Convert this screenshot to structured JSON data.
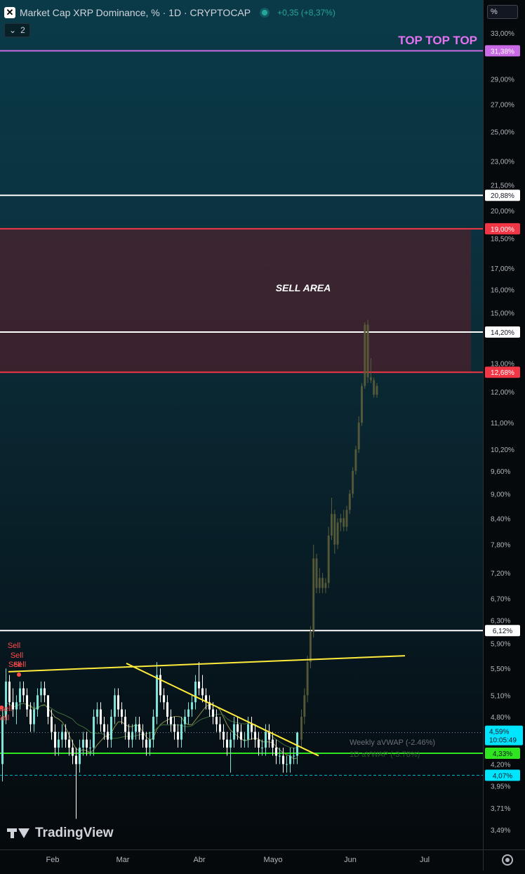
{
  "header": {
    "title": "Market Cap XRP Dominance, % · 1D · CRYPTOCAP",
    "change": "+0,35 (+8,37%)",
    "indicator_count": "2",
    "unit": "%"
  },
  "watermark": "TradingView",
  "axis_ticks": [
    {
      "value": 33.0,
      "label": "33,00%"
    },
    {
      "value": 29.0,
      "label": "29,00%"
    },
    {
      "value": 27.0,
      "label": "27,00%"
    },
    {
      "value": 25.0,
      "label": "25,00%"
    },
    {
      "value": 23.0,
      "label": "23,00%"
    },
    {
      "value": 21.5,
      "label": "21,50%"
    },
    {
      "value": 20.0,
      "label": "20,00%"
    },
    {
      "value": 18.5,
      "label": "18,50%"
    },
    {
      "value": 17.0,
      "label": "17,00%"
    },
    {
      "value": 16.0,
      "label": "16,00%"
    },
    {
      "value": 15.0,
      "label": "15,00%"
    },
    {
      "value": 13.0,
      "label": "13,00%"
    },
    {
      "value": 12.0,
      "label": "12,00%"
    },
    {
      "value": 11.0,
      "label": "11,00%"
    },
    {
      "value": 10.2,
      "label": "10,20%"
    },
    {
      "value": 9.6,
      "label": "9,60%"
    },
    {
      "value": 9.0,
      "label": "9,00%"
    },
    {
      "value": 8.4,
      "label": "8,40%"
    },
    {
      "value": 7.8,
      "label": "7,80%"
    },
    {
      "value": 7.2,
      "label": "7,20%"
    },
    {
      "value": 6.7,
      "label": "6,70%"
    },
    {
      "value": 6.3,
      "label": "6,30%"
    },
    {
      "value": 5.9,
      "label": "5,90%"
    },
    {
      "value": 5.5,
      "label": "5,50%"
    },
    {
      "value": 5.1,
      "label": "5,10%"
    },
    {
      "value": 4.8,
      "label": "4,80%"
    },
    {
      "value": 4.2,
      "label": "4,20%"
    },
    {
      "value": 3.95,
      "label": "3,95%"
    },
    {
      "value": 3.71,
      "label": "3,71%"
    },
    {
      "value": 3.49,
      "label": "3,49%"
    }
  ],
  "time_ticks": [
    "Feb",
    "Mar",
    "Abr",
    "Mayo",
    "Jun",
    "Jul"
  ],
  "levels": [
    {
      "value": 31.38,
      "label": "31,38%",
      "line_color": "#c96ae6",
      "badge_bg": "#c96ae6",
      "badge_fg": "#ffffff",
      "style": "solid"
    },
    {
      "value": 20.88,
      "label": "20,88%",
      "line_color": "#ffffff",
      "badge_bg": "#ffffff",
      "badge_fg": "#131722",
      "style": "solid"
    },
    {
      "value": 19.0,
      "label": "19,00%",
      "line_color": "#f23645",
      "badge_bg": "#f23645",
      "badge_fg": "#ffffff",
      "style": "solid"
    },
    {
      "value": 14.2,
      "label": "14,20%",
      "line_color": "#ffffff",
      "badge_bg": "#ffffff",
      "badge_fg": "#131722",
      "style": "solid"
    },
    {
      "value": 12.68,
      "label": "12,68%",
      "line_color": "#f23645",
      "badge_bg": "#f23645",
      "badge_fg": "#ffffff",
      "style": "solid"
    },
    {
      "value": 6.12,
      "label": "6,12%",
      "line_color": "#ffffff",
      "badge_bg": "#ffffff",
      "badge_fg": "#131722",
      "style": "solid"
    },
    {
      "value": 4.33,
      "label": "4,33%",
      "line_color": "#2ee51f",
      "badge_bg": "#2ee51f",
      "badge_fg": "#131722",
      "style": "solid"
    },
    {
      "value": 4.07,
      "label": "4,07%",
      "line_color": "#00bcd4",
      "badge_bg": "#00e5ff",
      "badge_fg": "#131722",
      "style": "dashed"
    }
  ],
  "current_price": {
    "value": 4.59,
    "label": "4,59%",
    "countdown": "10:05:49",
    "color": "#00e5ff"
  },
  "chart_data": {
    "type": "candlestick",
    "title": "Market Cap XRP Dominance, %",
    "interval": "1D",
    "source": "CRYPTOCAP",
    "y_scale": "log",
    "ylim": [
      3.4,
      34.0
    ],
    "x_categories": [
      "Feb",
      "Mar",
      "Abr",
      "Mayo",
      "Jun",
      "Jul"
    ],
    "grid": false,
    "annotations": {
      "top_label": "TOP TOP TOP",
      "zone_label": "SELL AREA",
      "sell_zone": [
        12.68,
        19.0
      ],
      "sell_signals": [
        "Sell",
        "Sell",
        "Sell",
        "Sell",
        "Sell",
        "Sell"
      ],
      "indicator_labels": [
        "Weekly aVWAP (-2.46%)",
        "1D aVWAP (-3.78%)"
      ]
    },
    "trendlines": [
      {
        "name": "",
        "color": "#ffeb3b",
        "from": [
          "Ene 12",
          5.45
        ],
        "to": [
          "Jun 22",
          5.7
        ]
      },
      {
        "name": "",
        "color": "#ffeb3b",
        "from": [
          "Mar 01",
          5.58
        ],
        "to": [
          "May 18",
          4.3
        ]
      }
    ],
    "history_candles": [
      [
        4.2,
        4.9,
        4.0,
        4.8
      ],
      [
        4.8,
        5.5,
        4.7,
        5.3
      ],
      [
        5.3,
        5.4,
        4.9,
        5.0
      ],
      [
        5.0,
        5.2,
        4.8,
        4.9
      ],
      [
        4.9,
        5.1,
        4.7,
        5.0
      ],
      [
        5.0,
        5.3,
        4.9,
        5.2
      ],
      [
        5.2,
        5.3,
        5.0,
        5.1
      ],
      [
        5.1,
        5.2,
        4.8,
        4.9
      ],
      [
        4.9,
        5.0,
        4.6,
        4.7
      ],
      [
        4.7,
        5.0,
        4.6,
        4.9
      ],
      [
        4.9,
        5.2,
        4.8,
        5.1
      ],
      [
        5.1,
        5.3,
        5.0,
        5.2
      ],
      [
        5.2,
        5.3,
        5.0,
        5.1
      ],
      [
        5.1,
        5.1,
        4.7,
        4.8
      ],
      [
        4.8,
        4.9,
        4.5,
        4.6
      ],
      [
        4.6,
        4.7,
        4.3,
        4.4
      ],
      [
        4.4,
        4.6,
        4.3,
        4.5
      ],
      [
        4.5,
        4.7,
        4.4,
        4.6
      ],
      [
        4.6,
        4.7,
        4.4,
        4.5
      ],
      [
        4.5,
        4.6,
        4.3,
        4.4
      ],
      [
        4.4,
        4.5,
        4.2,
        4.3
      ],
      [
        4.3,
        4.4,
        3.6,
        4.2
      ],
      [
        4.2,
        4.5,
        4.1,
        4.4
      ],
      [
        4.4,
        4.6,
        4.3,
        4.5
      ],
      [
        4.5,
        4.6,
        4.3,
        4.4
      ],
      [
        4.4,
        4.5,
        4.3,
        4.4
      ],
      [
        4.4,
        4.9,
        4.3,
        4.8
      ],
      [
        4.8,
        5.0,
        4.7,
        4.9
      ],
      [
        4.9,
        5.0,
        4.6,
        4.7
      ],
      [
        4.7,
        4.8,
        4.5,
        4.6
      ],
      [
        4.6,
        4.7,
        4.4,
        4.5
      ],
      [
        4.5,
        4.9,
        4.4,
        4.8
      ],
      [
        4.8,
        5.2,
        4.7,
        5.1
      ],
      [
        5.1,
        5.2,
        4.8,
        4.9
      ],
      [
        4.9,
        5.0,
        4.7,
        4.8
      ],
      [
        4.8,
        4.9,
        4.5,
        4.6
      ],
      [
        4.6,
        4.7,
        4.4,
        4.5
      ],
      [
        4.5,
        4.7,
        4.4,
        4.6
      ],
      [
        4.6,
        4.8,
        4.5,
        4.7
      ],
      [
        4.7,
        4.8,
        4.5,
        4.6
      ],
      [
        4.6,
        4.7,
        4.4,
        4.5
      ],
      [
        4.5,
        4.6,
        4.3,
        4.4
      ],
      [
        4.4,
        4.6,
        4.3,
        4.5
      ],
      [
        4.5,
        4.9,
        4.4,
        4.8
      ],
      [
        4.8,
        5.6,
        4.7,
        5.4
      ],
      [
        5.4,
        5.5,
        5.0,
        5.1
      ],
      [
        5.1,
        5.2,
        4.9,
        5.0
      ],
      [
        5.0,
        5.1,
        4.7,
        4.8
      ],
      [
        4.8,
        4.9,
        4.6,
        4.7
      ],
      [
        4.7,
        4.8,
        4.5,
        4.6
      ],
      [
        4.6,
        4.7,
        4.4,
        4.5
      ],
      [
        4.5,
        4.8,
        4.4,
        4.7
      ],
      [
        4.7,
        4.9,
        4.6,
        4.8
      ],
      [
        4.8,
        5.0,
        4.7,
        4.9
      ],
      [
        4.9,
        5.1,
        4.8,
        5.0
      ],
      [
        5.0,
        5.4,
        4.9,
        5.3
      ],
      [
        5.3,
        5.6,
        5.1,
        5.2
      ],
      [
        5.2,
        5.4,
        5.0,
        5.1
      ],
      [
        5.1,
        5.2,
        4.9,
        5.0
      ],
      [
        5.0,
        5.1,
        4.8,
        4.9
      ],
      [
        4.9,
        5.0,
        4.7,
        4.8
      ],
      [
        4.8,
        4.9,
        4.6,
        4.7
      ],
      [
        4.7,
        4.8,
        4.5,
        4.6
      ],
      [
        4.6,
        4.7,
        4.4,
        4.5
      ],
      [
        4.5,
        4.6,
        4.3,
        4.4
      ],
      [
        4.4,
        4.6,
        4.1,
        4.5
      ],
      [
        4.5,
        4.8,
        4.4,
        4.7
      ],
      [
        4.7,
        4.8,
        4.5,
        4.6
      ],
      [
        4.6,
        4.7,
        4.4,
        4.5
      ],
      [
        4.5,
        4.6,
        4.4,
        4.5
      ],
      [
        4.5,
        4.8,
        4.4,
        4.7
      ],
      [
        4.7,
        4.8,
        4.5,
        4.6
      ],
      [
        4.6,
        4.7,
        4.4,
        4.5
      ],
      [
        4.5,
        4.6,
        4.3,
        4.4
      ],
      [
        4.4,
        4.5,
        4.3,
        4.4
      ],
      [
        4.4,
        4.7,
        4.3,
        4.6
      ],
      [
        4.6,
        4.7,
        4.4,
        4.5
      ],
      [
        4.5,
        4.6,
        4.3,
        4.4
      ],
      [
        4.4,
        4.5,
        4.2,
        4.3
      ],
      [
        4.3,
        4.4,
        4.2,
        4.3
      ],
      [
        4.3,
        4.4,
        4.1,
        4.2
      ],
      [
        4.2,
        4.3,
        4.1,
        4.2
      ],
      [
        4.2,
        4.4,
        4.1,
        4.3
      ],
      [
        4.3,
        4.4,
        4.2,
        4.3
      ],
      [
        4.3,
        4.6,
        4.2,
        4.59
      ]
    ],
    "projection_candles": [
      [
        4.5,
        4.9,
        4.4,
        4.8
      ],
      [
        4.8,
        5.2,
        4.7,
        5.1
      ],
      [
        5.1,
        5.7,
        5.0,
        5.6
      ],
      [
        5.6,
        6.2,
        5.5,
        6.1
      ],
      [
        6.1,
        7.8,
        6.0,
        7.5
      ],
      [
        7.5,
        7.6,
        6.8,
        6.9
      ],
      [
        6.9,
        7.3,
        6.8,
        7.1
      ],
      [
        7.1,
        7.2,
        6.8,
        6.9
      ],
      [
        6.9,
        7.1,
        6.8,
        7.0
      ],
      [
        7.0,
        8.2,
        6.9,
        8.0
      ],
      [
        8.0,
        8.9,
        7.9,
        8.5
      ],
      [
        8.5,
        8.6,
        7.6,
        7.8
      ],
      [
        7.8,
        8.4,
        7.7,
        8.3
      ],
      [
        8.3,
        8.5,
        8.1,
        8.4
      ],
      [
        8.4,
        8.6,
        8.1,
        8.2
      ],
      [
        8.2,
        8.7,
        8.1,
        8.6
      ],
      [
        8.6,
        9.1,
        8.5,
        9.0
      ],
      [
        9.0,
        9.7,
        8.9,
        9.6
      ],
      [
        9.6,
        10.3,
        9.5,
        10.2
      ],
      [
        10.2,
        11.2,
        10.1,
        11.0
      ],
      [
        11.0,
        12.3,
        10.9,
        12.2
      ],
      [
        12.2,
        14.6,
        12.1,
        14.5
      ],
      [
        14.5,
        14.7,
        12.3,
        12.5
      ],
      [
        12.5,
        13.2,
        12.3,
        12.4
      ],
      [
        12.4,
        12.5,
        11.8,
        11.9
      ],
      [
        11.9,
        12.3,
        11.8,
        12.2
      ]
    ]
  }
}
